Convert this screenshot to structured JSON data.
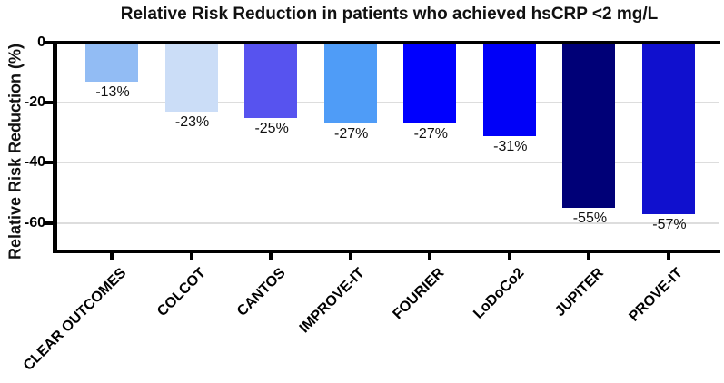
{
  "title": "Relative Risk Reduction in patients who achieved hsCRP <2 mg/L",
  "chart_data": {
    "type": "bar",
    "title": "Relative Risk Reduction in patients who achieved hsCRP <2 mg/L",
    "xlabel": "",
    "ylabel": "Relative Risk Reduction (%)",
    "ylim": [
      -70,
      0
    ],
    "yticks": [
      0,
      -20,
      -40,
      -60
    ],
    "grid": "horizontal light gray lines at -20, -40, -60",
    "legend": "none",
    "bar_direction": "downward (negative values)",
    "categories": [
      "CLEAR OUTCOMES",
      "COLCOT",
      "CANTOS",
      "IMPROVE-IT",
      "FOURIER",
      "LoDoCo2",
      "JUPITER",
      "PROVE-IT"
    ],
    "values": [
      -13,
      -23,
      -25,
      -27,
      -27,
      -31,
      -55,
      -57
    ],
    "bar_labels": [
      "-13%",
      "-23%",
      "-25%",
      "-27%",
      "-27%",
      "-31%",
      "-55%",
      "-57%"
    ],
    "bar_colors": [
      "#92BCF4",
      "#CBDDF7",
      "#5753EF",
      "#4F9CF7",
      "#0000FE",
      "#0000F8",
      "#000077",
      "#1010CE"
    ],
    "axis_color": "#000000",
    "gridline_color": "#DDDDDD",
    "background": "#FFFFFF"
  }
}
